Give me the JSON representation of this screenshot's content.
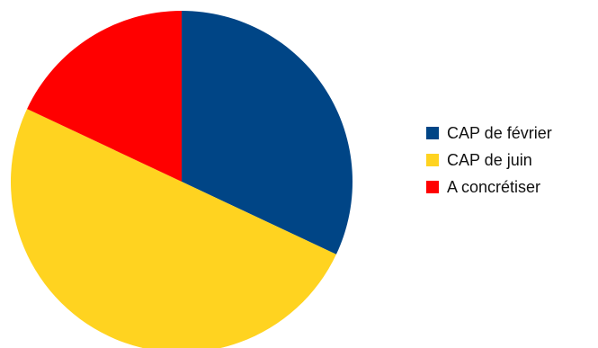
{
  "chart_data": {
    "type": "pie",
    "title": "",
    "categories": [
      "CAP de février",
      "CAP de juin",
      "A concrétiser"
    ],
    "values": [
      32,
      50,
      18
    ],
    "colors": [
      "#004586",
      "#ffd320",
      "#ff0000"
    ],
    "legend_position": "right"
  }
}
